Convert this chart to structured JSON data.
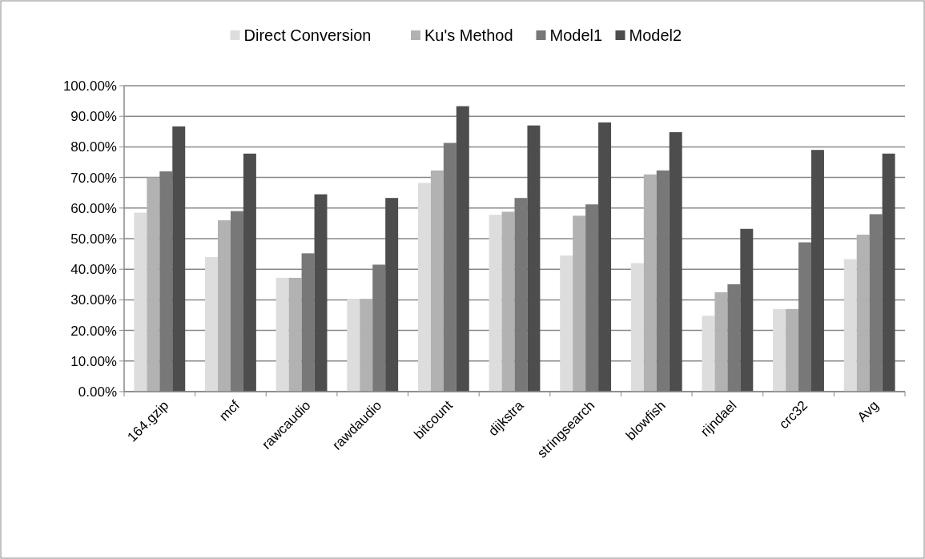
{
  "chart_data": {
    "type": "bar",
    "categories": [
      "164.gzip",
      "mcf",
      "rawcaudio",
      "rawdaudio",
      "bitcount",
      "dijkstra",
      "stringsearch",
      "blowfish",
      "rijndael",
      "crc32",
      "Avg"
    ],
    "series": [
      {
        "name": "Direct Conversion",
        "color": "#dddddd",
        "values": [
          58.5,
          44,
          37.2,
          30.3,
          68.2,
          57.8,
          44.5,
          42,
          24.8,
          27,
          43.3
        ]
      },
      {
        "name": "Ku's Method",
        "color": "#b2b2b2",
        "values": [
          70,
          56,
          37.2,
          30.3,
          72.3,
          58.8,
          57.5,
          71,
          32.5,
          27,
          51.3
        ]
      },
      {
        "name": "Model1",
        "color": "#787878",
        "values": [
          72,
          59,
          45.2,
          41.5,
          81.3,
          63.3,
          61.2,
          72.3,
          35.1,
          48.8,
          58
        ]
      },
      {
        "name": "Model2",
        "color": "#4d4d4d",
        "values": [
          86.7,
          77.8,
          64.5,
          63.3,
          93.3,
          87,
          88,
          84.8,
          53.2,
          79,
          77.8
        ]
      }
    ],
    "ylim": [
      0,
      100
    ],
    "yticks": [
      {
        "value": 0,
        "label": "0.00%"
      },
      {
        "value": 10,
        "label": "10.00%"
      },
      {
        "value": 20,
        "label": "20.00%"
      },
      {
        "value": 30,
        "label": "30.00%"
      },
      {
        "value": 40,
        "label": "40.00%"
      },
      {
        "value": 50,
        "label": "50.00%"
      },
      {
        "value": 60,
        "label": "60.00%"
      },
      {
        "value": 70,
        "label": "70.00%"
      },
      {
        "value": 80,
        "label": "80.00%"
      },
      {
        "value": 90,
        "label": "90.00%"
      },
      {
        "value": 100,
        "label": "100.00%"
      }
    ],
    "grid": "y",
    "legend": "top"
  }
}
